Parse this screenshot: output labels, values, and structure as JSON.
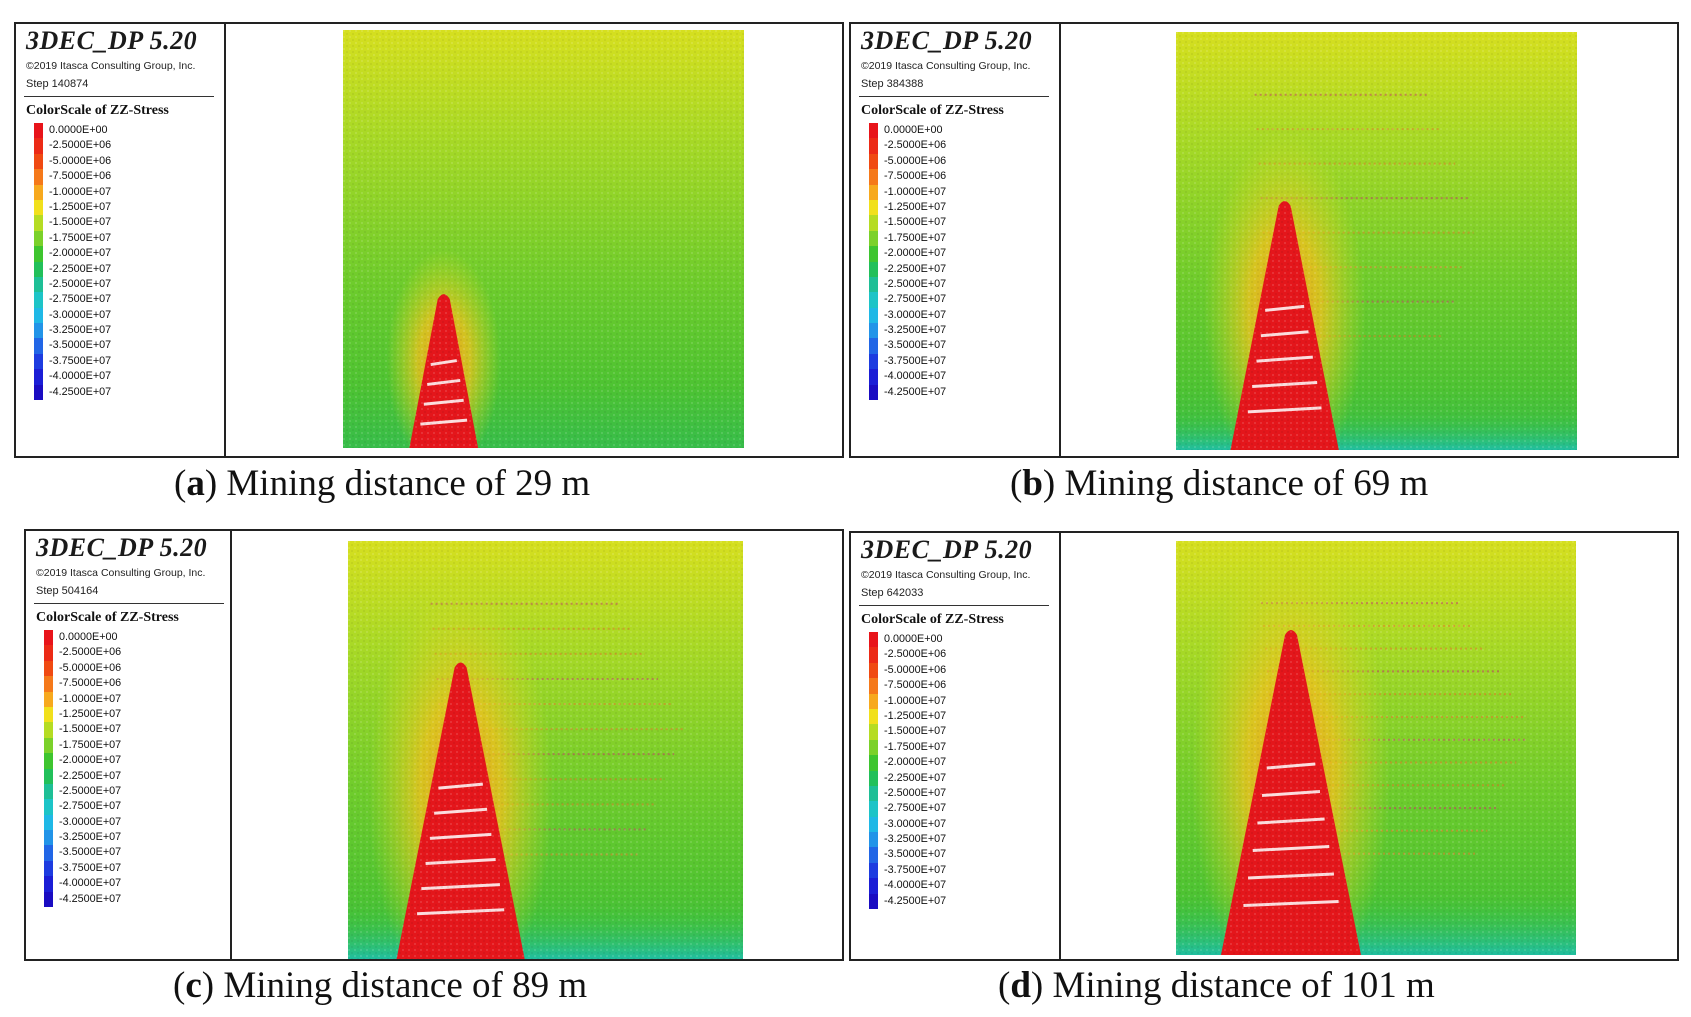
{
  "software": {
    "name": "3DEC_DP 5.20",
    "copyright": "©2019 Itasca Consulting Group, Inc."
  },
  "colorscale": {
    "title": "ColorScale of ZZ-Stress",
    "entries": [
      {
        "label": "0.0000E+00",
        "color": "#e8141a"
      },
      {
        "label": "-2.5000E+06",
        "color": "#ec2a16"
      },
      {
        "label": "-5.0000E+06",
        "color": "#f04a12"
      },
      {
        "label": "-7.5000E+06",
        "color": "#f5791a"
      },
      {
        "label": "-1.0000E+07",
        "color": "#f7a91e"
      },
      {
        "label": "-1.2500E+07",
        "color": "#f1e01c"
      },
      {
        "label": "-1.5000E+07",
        "color": "#b5dc23"
      },
      {
        "label": "-1.7500E+07",
        "color": "#7bd12a"
      },
      {
        "label": "-2.0000E+07",
        "color": "#3ec52f"
      },
      {
        "label": "-2.2500E+07",
        "color": "#22c05a"
      },
      {
        "label": "-2.5000E+07",
        "color": "#1ebf96"
      },
      {
        "label": "-2.7500E+07",
        "color": "#1dc4c7"
      },
      {
        "label": "-3.0000E+07",
        "color": "#1fb8e6"
      },
      {
        "label": "-3.2500E+07",
        "color": "#2294e8"
      },
      {
        "label": "-3.5000E+07",
        "color": "#2166e6"
      },
      {
        "label": "-3.7500E+07",
        "color": "#1d3ce0"
      },
      {
        "label": "-4.0000E+07",
        "color": "#1b1ed6"
      },
      {
        "label": "-4.2500E+07",
        "color": "#1a0cc2"
      }
    ]
  },
  "panels": [
    {
      "id": "a",
      "step": "Step 140874",
      "caption_letter": "a",
      "caption_text": "Mining distance of 29 m",
      "mining_distance_m": 29
    },
    {
      "id": "b",
      "step": "Step 384388",
      "caption_letter": "b",
      "caption_text": "Mining distance of 69 m",
      "mining_distance_m": 69
    },
    {
      "id": "c",
      "step": "Step 504164",
      "caption_letter": "c",
      "caption_text": "Mining distance of 89 m",
      "mining_distance_m": 89
    },
    {
      "id": "d",
      "step": "Step 642033",
      "caption_letter": "d",
      "caption_text": "Mining distance of 101 m",
      "mining_distance_m": 101
    }
  ]
}
